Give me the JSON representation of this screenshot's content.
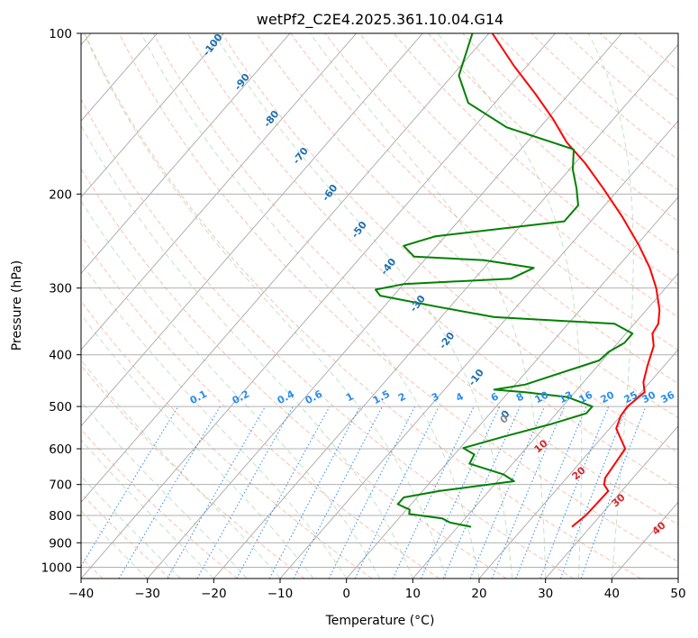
{
  "chart_data": {
    "type": "skew-t",
    "title": "wetPf2_C2E4.2025.361.10.04.G14",
    "xlabel": "Temperature (°C)",
    "ylabel": "Pressure (hPa)",
    "xlim": [
      -40,
      50
    ],
    "ylim": [
      1050,
      100
    ],
    "y_scale": "log",
    "x_ticks": [
      -40,
      -30,
      -20,
      -10,
      0,
      10,
      20,
      30,
      40,
      50
    ],
    "x_tick_labels": [
      "−40",
      "−30",
      "−20",
      "−10",
      "0",
      "10",
      "20",
      "30",
      "40",
      "50"
    ],
    "y_ticks": [
      1000,
      900,
      800,
      700,
      600,
      500,
      400,
      300,
      200,
      100
    ],
    "y_tick_labels": [
      "1000",
      "900",
      "800",
      "700",
      "600",
      "500",
      "400",
      "300",
      "200",
      "100"
    ],
    "grid": true,
    "skew_per_decade": 70,
    "dry_adiabat_labels": [
      "-100",
      "-90",
      "-80",
      "-70",
      "-60",
      "-50",
      "-40",
      "-30",
      "-20",
      "-10",
      "0"
    ],
    "mixing_ratio_labels": [
      "0.1",
      "0.2",
      "0.4",
      "0.6",
      "1",
      "1.5",
      "2",
      "3",
      "4",
      "6",
      "8",
      "10",
      "13",
      "16",
      "20",
      "25",
      "30",
      "36"
    ],
    "moist_adiabat_labels": [
      "10",
      "20",
      "30",
      "40"
    ],
    "series": [
      {
        "color": "#ff0000",
        "values": [
          [
            840,
            27.2
          ],
          [
            800,
            27.8
          ],
          [
            720,
            28.0
          ],
          [
            700,
            26.5
          ],
          [
            680,
            25.8
          ],
          [
            600,
            25.0
          ],
          [
            550,
            21.0
          ],
          [
            520,
            20.0
          ],
          [
            500,
            19.8
          ],
          [
            470,
            20.5
          ],
          [
            450,
            19.0
          ],
          [
            420,
            17.5
          ],
          [
            385,
            15.8
          ],
          [
            365,
            14.0
          ],
          [
            350,
            13.6
          ],
          [
            330,
            12.0
          ],
          [
            300,
            8.6
          ],
          [
            275,
            5.0
          ],
          [
            250,
            0.5
          ],
          [
            220,
            -6.0
          ],
          [
            195,
            -12.5
          ],
          [
            175,
            -18.5
          ],
          [
            160,
            -24.0
          ],
          [
            145,
            -29.0
          ],
          [
            130,
            -35.0
          ],
          [
            115,
            -42.0
          ],
          [
            100,
            -49.5
          ]
        ]
      },
      {
        "color": "#008000",
        "values": [
          [
            840,
            12.0
          ],
          [
            825,
            8.3
          ],
          [
            810,
            6.5
          ],
          [
            795,
            1.0
          ],
          [
            780,
            0.5
          ],
          [
            762,
            -2.0
          ],
          [
            740,
            -2.0
          ],
          [
            720,
            2.5
          ],
          [
            690,
            12.5
          ],
          [
            670,
            10.0
          ],
          [
            640,
            3.5
          ],
          [
            615,
            3.0
          ],
          [
            598,
            0.5
          ],
          [
            570,
            5.0
          ],
          [
            540,
            10.5
          ],
          [
            515,
            14.5
          ],
          [
            500,
            14.5
          ],
          [
            480,
            9.5
          ],
          [
            470,
            2.5
          ],
          [
            465,
            -2.5
          ],
          [
            455,
            1.5
          ],
          [
            430,
            5.8
          ],
          [
            410,
            9.5
          ],
          [
            395,
            9.8
          ],
          [
            380,
            11.0
          ],
          [
            365,
            11.0
          ],
          [
            350,
            7.0
          ],
          [
            340,
            -12.0
          ],
          [
            325,
            -22.0
          ],
          [
            310,
            -32.0
          ],
          [
            302,
            -33.5
          ],
          [
            295,
            -30.0
          ],
          [
            288,
            -14.5
          ],
          [
            275,
            -12.5
          ],
          [
            266,
            -21.0
          ],
          [
            262,
            -32.0
          ],
          [
            250,
            -35.0
          ],
          [
            240,
            -31.5
          ],
          [
            225,
            -14.0
          ],
          [
            210,
            -14.0
          ],
          [
            195,
            -16.5
          ],
          [
            180,
            -19.5
          ],
          [
            165,
            -22.0
          ],
          [
            150,
            -35.0
          ],
          [
            135,
            -44.0
          ],
          [
            120,
            -49.0
          ],
          [
            100,
            -52.5
          ]
        ]
      }
    ]
  }
}
